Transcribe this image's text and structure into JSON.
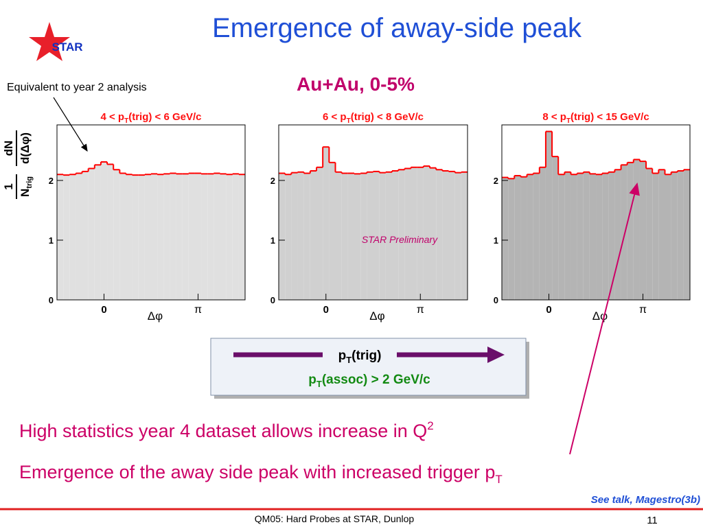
{
  "header": {
    "title": "Emergence of away-side peak",
    "logo": "STAR"
  },
  "subtitle": "Au+Au, 0-5%",
  "annotation": "Equivalent to year 2 analysis",
  "watermark": "STAR Preliminary",
  "ylabel": {
    "num1": "1",
    "den1": "N",
    "den1_sub": "trig",
    "num2": "dN",
    "den2": "d(Δφ)"
  },
  "chart_data": [
    {
      "type": "histogram",
      "title": [
        "4 < p",
        "T",
        "(trig) < 6 GeV/c"
      ],
      "xlabel": "Δφ",
      "color": "#e0e0e0",
      "line_color": "#ff0000",
      "bins": [
        -1.571,
        -1.361,
        -1.152,
        -0.942,
        -0.733,
        -0.524,
        -0.314,
        -0.105,
        0.105,
        0.314,
        0.524,
        0.733,
        0.942,
        1.152,
        1.361,
        1.571,
        1.78,
        1.99,
        2.199,
        2.409,
        2.618,
        2.827,
        3.037,
        3.246,
        3.456,
        3.665,
        3.875,
        4.084,
        4.294,
        4.503,
        4.712
      ],
      "values": [
        2.1,
        2.09,
        2.1,
        2.12,
        2.15,
        2.2,
        2.26,
        2.31,
        2.27,
        2.18,
        2.12,
        2.1,
        2.09,
        2.09,
        2.1,
        2.11,
        2.1,
        2.11,
        2.12,
        2.11,
        2.11,
        2.12,
        2.12,
        2.11,
        2.11,
        2.12,
        2.11,
        2.1,
        2.11,
        2.1
      ],
      "xlim": [
        -1.571,
        4.712
      ],
      "xticks": [
        0,
        {
          "value": 3.1416,
          "label": "π"
        }
      ],
      "ylim": [
        0,
        2.93
      ],
      "yticks": [
        0,
        1,
        2
      ]
    },
    {
      "type": "histogram",
      "title": [
        "6 < p",
        "T",
        "(trig) < 8 GeV/c"
      ],
      "xlabel": "Δφ",
      "color": "#d0d0d0",
      "line_color": "#ff0000",
      "bins": [
        -1.571,
        -1.361,
        -1.152,
        -0.942,
        -0.733,
        -0.524,
        -0.314,
        -0.105,
        0.105,
        0.314,
        0.524,
        0.733,
        0.942,
        1.152,
        1.361,
        1.571,
        1.78,
        1.99,
        2.199,
        2.409,
        2.618,
        2.827,
        3.037,
        3.246,
        3.456,
        3.665,
        3.875,
        4.084,
        4.294,
        4.503,
        4.712
      ],
      "values": [
        2.12,
        2.1,
        2.13,
        2.14,
        2.12,
        2.16,
        2.22,
        2.56,
        2.3,
        2.14,
        2.12,
        2.12,
        2.11,
        2.12,
        2.14,
        2.15,
        2.13,
        2.14,
        2.16,
        2.18,
        2.2,
        2.22,
        2.22,
        2.24,
        2.21,
        2.18,
        2.16,
        2.15,
        2.13,
        2.14
      ],
      "xlim": [
        -1.571,
        4.712
      ],
      "xticks": [
        0,
        {
          "value": 3.1416,
          "label": "π"
        }
      ],
      "ylim": [
        0,
        2.93
      ],
      "yticks": [
        0,
        1,
        2
      ]
    },
    {
      "type": "histogram",
      "title": [
        "8 < p",
        "T",
        "(trig) < 15 GeV/c"
      ],
      "xlabel": "Δφ",
      "color": "#b4b4b4",
      "line_color": "#ff0000",
      "bins": [
        -1.571,
        -1.361,
        -1.152,
        -0.942,
        -0.733,
        -0.524,
        -0.314,
        -0.105,
        0.105,
        0.314,
        0.524,
        0.733,
        0.942,
        1.152,
        1.361,
        1.571,
        1.78,
        1.99,
        2.199,
        2.409,
        2.618,
        2.827,
        3.037,
        3.246,
        3.456,
        3.665,
        3.875,
        4.084,
        4.294,
        4.503,
        4.712
      ],
      "values": [
        2.05,
        2.03,
        2.08,
        2.06,
        2.1,
        2.12,
        2.22,
        2.82,
        2.4,
        2.1,
        2.14,
        2.1,
        2.12,
        2.14,
        2.11,
        2.1,
        2.12,
        2.14,
        2.18,
        2.26,
        2.3,
        2.35,
        2.32,
        2.2,
        2.12,
        2.18,
        2.1,
        2.14,
        2.16,
        2.18
      ],
      "xlim": [
        -1.571,
        4.712
      ],
      "xticks": [
        0,
        {
          "value": 3.1416,
          "label": "π"
        }
      ],
      "ylim": [
        0,
        2.93
      ],
      "yticks": [
        0,
        1,
        2
      ]
    }
  ],
  "legend_box": {
    "line1": [
      "p",
      "T",
      "(trig)"
    ],
    "line2": [
      "p",
      "T",
      "(assoc) > 2 GeV/c"
    ]
  },
  "bullets": [
    {
      "text": "High statistics year 4 dataset allows increase in Q",
      "sup": "2"
    },
    {
      "text": "Emergence of the away side peak with increased trigger p",
      "sub": "T"
    }
  ],
  "reference": "See talk, Magestro(3b)",
  "footer": {
    "text": "QM05: Hard Probes at STAR, Dunlop",
    "page": "11"
  }
}
